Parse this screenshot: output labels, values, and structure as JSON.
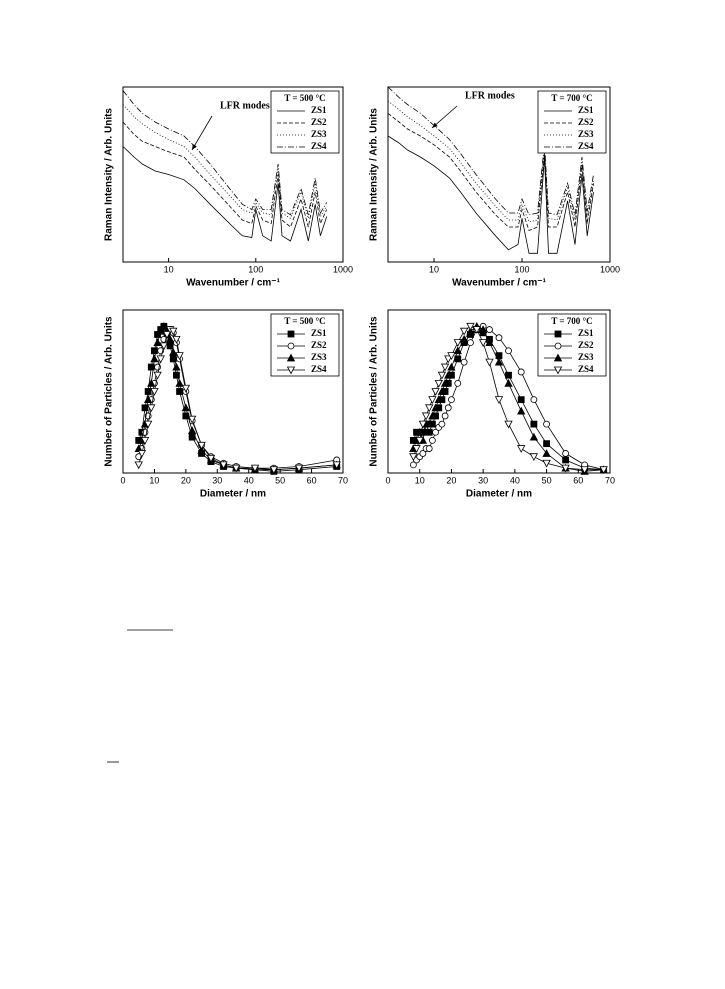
{
  "chart_data": [
    {
      "type": "line",
      "legend_title": "T = 500 °C",
      "annotation": "LFR modes",
      "xlabel": "Wavenumber / cm⁻¹",
      "ylabel": "Raman Intensity / Arb. Units",
      "xscale": "log",
      "xlim": [
        3,
        1000
      ],
      "xticks": [
        10,
        100,
        1000
      ],
      "ylim": [
        0,
        1
      ],
      "legend": "upper right",
      "x": [
        3,
        4,
        5,
        7,
        10,
        15,
        20,
        30,
        50,
        70,
        90,
        100,
        120,
        150,
        180,
        200,
        250,
        330,
        400,
        480,
        550,
        650
      ],
      "series": [
        {
          "name": "ZS1",
          "color": "#000",
          "line_style": "solid",
          "values": [
            0.66,
            0.6,
            0.56,
            0.52,
            0.5,
            0.47,
            0.42,
            0.33,
            0.22,
            0.15,
            0.14,
            0.3,
            0.15,
            0.12,
            0.45,
            0.15,
            0.12,
            0.3,
            0.12,
            0.33,
            0.15,
            0.26
          ]
        },
        {
          "name": "ZS2",
          "color": "#000",
          "line_style": "dashed",
          "values": [
            0.8,
            0.73,
            0.69,
            0.66,
            0.63,
            0.6,
            0.53,
            0.44,
            0.32,
            0.24,
            0.22,
            0.32,
            0.24,
            0.22,
            0.5,
            0.24,
            0.2,
            0.36,
            0.2,
            0.4,
            0.22,
            0.3
          ]
        },
        {
          "name": "ZS3",
          "color": "#000",
          "line_style": "dotted",
          "values": [
            0.9,
            0.83,
            0.79,
            0.74,
            0.7,
            0.66,
            0.6,
            0.5,
            0.38,
            0.3,
            0.28,
            0.34,
            0.28,
            0.27,
            0.54,
            0.28,
            0.25,
            0.4,
            0.25,
            0.45,
            0.26,
            0.32
          ]
        },
        {
          "name": "ZS4",
          "color": "#000",
          "line_style": "dashdot",
          "values": [
            0.98,
            0.9,
            0.85,
            0.8,
            0.76,
            0.72,
            0.66,
            0.56,
            0.42,
            0.33,
            0.3,
            0.36,
            0.3,
            0.3,
            0.56,
            0.3,
            0.27,
            0.42,
            0.27,
            0.48,
            0.28,
            0.34
          ]
        }
      ]
    },
    {
      "type": "line",
      "legend_title": "T = 700 °C",
      "annotation": "LFR modes",
      "xlabel": "Wavenumber / cm⁻¹",
      "ylabel": "Raman Intensity / Arb. Units",
      "xscale": "log",
      "xlim": [
        3,
        1000
      ],
      "xticks": [
        10,
        100,
        1000
      ],
      "ylim": [
        0,
        1
      ],
      "legend": "upper right",
      "x": [
        3,
        4,
        5,
        7,
        10,
        15,
        20,
        30,
        50,
        70,
        90,
        100,
        120,
        150,
        180,
        200,
        250,
        330,
        400,
        480,
        550,
        650
      ],
      "series": [
        {
          "name": "ZS1",
          "color": "#000",
          "line_style": "solid",
          "values": [
            0.72,
            0.68,
            0.64,
            0.6,
            0.55,
            0.48,
            0.4,
            0.28,
            0.15,
            0.07,
            0.1,
            0.25,
            0.05,
            0.05,
            0.6,
            0.05,
            0.05,
            0.35,
            0.1,
            0.5,
            0.15,
            0.4
          ]
        },
        {
          "name": "ZS2",
          "color": "#000",
          "line_style": "dashed",
          "values": [
            0.85,
            0.8,
            0.76,
            0.72,
            0.67,
            0.6,
            0.52,
            0.4,
            0.27,
            0.2,
            0.2,
            0.3,
            0.18,
            0.2,
            0.62,
            0.2,
            0.2,
            0.4,
            0.2,
            0.55,
            0.22,
            0.45
          ]
        },
        {
          "name": "ZS3",
          "color": "#000",
          "line_style": "dotted",
          "values": [
            0.92,
            0.87,
            0.83,
            0.78,
            0.72,
            0.65,
            0.57,
            0.45,
            0.32,
            0.24,
            0.24,
            0.33,
            0.23,
            0.24,
            0.65,
            0.25,
            0.24,
            0.43,
            0.24,
            0.57,
            0.26,
            0.47
          ]
        },
        {
          "name": "ZS4",
          "color": "#000",
          "line_style": "dashdot",
          "values": [
            1.0,
            0.94,
            0.9,
            0.85,
            0.78,
            0.7,
            0.62,
            0.5,
            0.36,
            0.28,
            0.28,
            0.36,
            0.27,
            0.28,
            0.68,
            0.28,
            0.27,
            0.45,
            0.27,
            0.6,
            0.29,
            0.5
          ]
        }
      ]
    },
    {
      "type": "line",
      "legend_title": "T = 500 °C",
      "xlabel": "Diameter / nm",
      "ylabel": "Number of Particles / Arb. Units",
      "xlim": [
        0,
        70
      ],
      "xticks": [
        0,
        10,
        20,
        30,
        40,
        50,
        60,
        70
      ],
      "ylim": [
        0,
        1
      ],
      "legend": "upper right",
      "x": [
        5,
        6,
        7,
        8,
        9,
        10,
        11,
        12,
        13,
        14,
        15,
        16,
        17,
        18,
        20,
        22,
        25,
        28,
        32,
        36,
        42,
        48,
        56,
        68
      ],
      "series": [
        {
          "name": "ZS1",
          "color": "#000",
          "marker": "square-filled",
          "values": [
            0.2,
            0.25,
            0.4,
            0.5,
            0.65,
            0.75,
            0.85,
            0.88,
            0.9,
            0.85,
            0.78,
            0.7,
            0.6,
            0.5,
            0.35,
            0.22,
            0.12,
            0.07,
            0.04,
            0.03,
            0.02,
            0.01,
            0.02,
            0.04
          ]
        },
        {
          "name": "ZS2",
          "color": "#000",
          "marker": "circle-open",
          "values": [
            0.1,
            0.15,
            0.25,
            0.35,
            0.45,
            0.55,
            0.65,
            0.75,
            0.82,
            0.86,
            0.88,
            0.86,
            0.8,
            0.7,
            0.5,
            0.32,
            0.17,
            0.1,
            0.06,
            0.04,
            0.03,
            0.03,
            0.04,
            0.08
          ]
        },
        {
          "name": "ZS3",
          "color": "#000",
          "marker": "triangle-filled",
          "values": [
            0.15,
            0.2,
            0.3,
            0.45,
            0.55,
            0.7,
            0.8,
            0.87,
            0.9,
            0.88,
            0.82,
            0.74,
            0.65,
            0.55,
            0.4,
            0.26,
            0.14,
            0.08,
            0.05,
            0.03,
            0.02,
            0.02,
            0.03,
            0.05
          ]
        },
        {
          "name": "ZS4",
          "color": "#000",
          "marker": "triangle-down-open",
          "values": [
            0.05,
            0.12,
            0.2,
            0.3,
            0.4,
            0.5,
            0.6,
            0.7,
            0.78,
            0.85,
            0.88,
            0.87,
            0.82,
            0.72,
            0.52,
            0.33,
            0.17,
            0.09,
            0.05,
            0.03,
            0.03,
            0.02,
            0.03,
            0.05
          ]
        }
      ]
    },
    {
      "type": "line",
      "legend_title": "T = 700 °C",
      "xlabel": "Diameter / nm",
      "ylabel": "Number of Particles / Arb. Units",
      "xlim": [
        0,
        70
      ],
      "xticks": [
        0,
        10,
        20,
        30,
        40,
        50,
        60,
        70
      ],
      "ylim": [
        0,
        1
      ],
      "legend": "upper right",
      "x": [
        8,
        9,
        10,
        11,
        12,
        13,
        14,
        15,
        16,
        17,
        18,
        19,
        20,
        22,
        24,
        26,
        28,
        30,
        32,
        35,
        38,
        42,
        46,
        50,
        56,
        62,
        68
      ],
      "series": [
        {
          "name": "ZS1",
          "color": "#000",
          "marker": "square-filled",
          "values": [
            0.2,
            0.25,
            0.2,
            0.25,
            0.3,
            0.25,
            0.3,
            0.35,
            0.4,
            0.45,
            0.5,
            0.55,
            0.6,
            0.7,
            0.8,
            0.85,
            0.88,
            0.86,
            0.82,
            0.72,
            0.6,
            0.45,
            0.3,
            0.18,
            0.08,
            0.03,
            0.02
          ]
        },
        {
          "name": "ZS2",
          "color": "#000",
          "marker": "circle-open",
          "values": [
            0.05,
            0.08,
            0.1,
            0.12,
            0.15,
            0.15,
            0.2,
            0.25,
            0.28,
            0.3,
            0.35,
            0.4,
            0.45,
            0.55,
            0.68,
            0.8,
            0.88,
            0.9,
            0.88,
            0.83,
            0.75,
            0.62,
            0.45,
            0.3,
            0.12,
            0.05,
            0.02
          ]
        },
        {
          "name": "ZS3",
          "color": "#000",
          "marker": "triangle-filled",
          "values": [
            0.15,
            0.2,
            0.25,
            0.2,
            0.3,
            0.3,
            0.35,
            0.4,
            0.45,
            0.5,
            0.55,
            0.6,
            0.65,
            0.75,
            0.82,
            0.87,
            0.9,
            0.88,
            0.8,
            0.68,
            0.55,
            0.38,
            0.22,
            0.12,
            0.03,
            0.01,
            0.02
          ]
        },
        {
          "name": "ZS4",
          "color": "#000",
          "marker": "triangle-down-open",
          "values": [
            0.1,
            0.15,
            0.2,
            0.3,
            0.35,
            0.4,
            0.45,
            0.5,
            0.55,
            0.6,
            0.65,
            0.7,
            0.72,
            0.8,
            0.87,
            0.9,
            0.88,
            0.8,
            0.68,
            0.45,
            0.3,
            0.15,
            0.1,
            0.06,
            0.03,
            0.02,
            0.02
          ]
        }
      ]
    }
  ]
}
